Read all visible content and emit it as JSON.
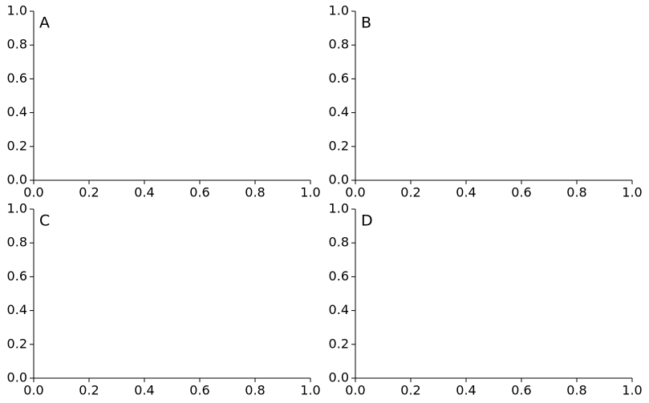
{
  "chart_data": [
    {
      "type": "line",
      "annotation": "A",
      "xlim": [
        0,
        1
      ],
      "ylim": [
        0,
        1
      ],
      "xticks": [
        {
          "value": 0,
          "label": "0.0"
        },
        0.2,
        0.4,
        0.6,
        0.8,
        {
          "value": 1,
          "label": "1.0"
        }
      ],
      "yticks": [
        {
          "value": 0,
          "label": "0.0"
        },
        0.2,
        0.4,
        0.6,
        0.8,
        {
          "value": 1,
          "label": "1.0"
        }
      ]
    },
    {
      "type": "line",
      "annotation": "B",
      "xlim": [
        0,
        1
      ],
      "ylim": [
        0,
        1
      ],
      "xticks": [
        {
          "value": 0,
          "label": "0.0"
        },
        0.2,
        0.4,
        0.6,
        0.8,
        {
          "value": 1,
          "label": "1.0"
        }
      ],
      "yticks": [
        {
          "value": 0,
          "label": "0.0"
        },
        0.2,
        0.4,
        0.6,
        0.8,
        {
          "value": 1,
          "label": "1.0"
        }
      ]
    },
    {
      "type": "line",
      "annotation": "C",
      "xlim": [
        0,
        1
      ],
      "ylim": [
        0,
        1
      ],
      "xticks": [
        {
          "value": 0,
          "label": "0.0"
        },
        0.2,
        0.4,
        0.6,
        0.8,
        {
          "value": 1,
          "label": "1.0"
        }
      ],
      "yticks": [
        {
          "value": 0,
          "label": "0.0"
        },
        0.2,
        0.4,
        0.6,
        0.8,
        {
          "value": 1,
          "label": "1.0"
        }
      ]
    },
    {
      "type": "line",
      "annotation": "D",
      "xlim": [
        0,
        1
      ],
      "ylim": [
        0,
        1
      ],
      "xticks": [
        {
          "value": 0,
          "label": "0.0"
        },
        0.2,
        0.4,
        0.6,
        0.8,
        {
          "value": 1,
          "label": "1.0"
        }
      ],
      "yticks": [
        {
          "value": 0,
          "label": "0.0"
        },
        0.2,
        0.4,
        0.6,
        0.8,
        {
          "value": 1,
          "label": "1.0"
        }
      ]
    }
  ]
}
